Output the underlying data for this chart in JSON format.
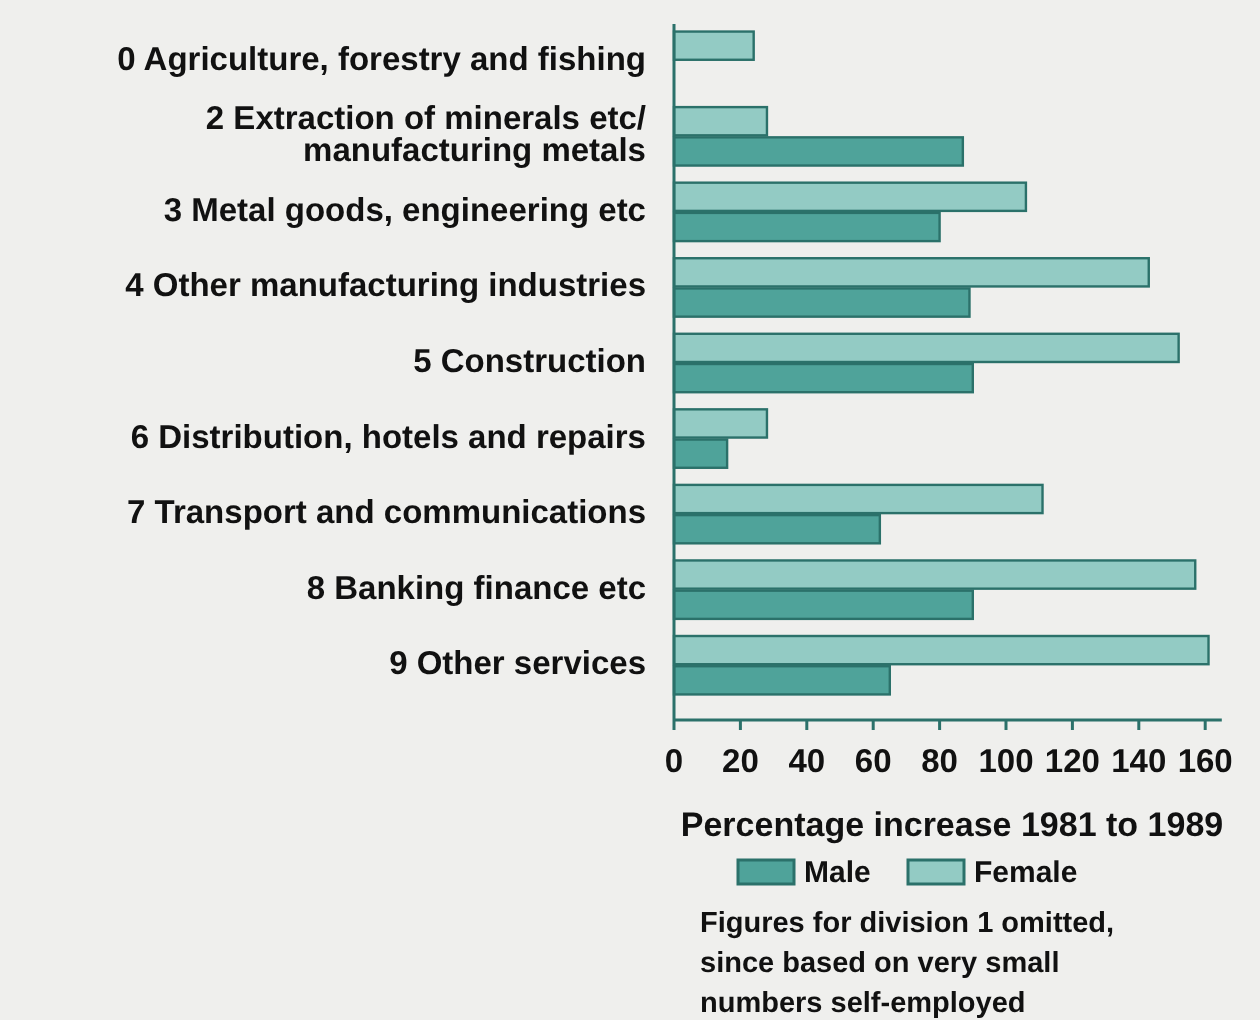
{
  "chart_data": {
    "type": "bar",
    "orientation": "horizontal",
    "categories": [
      "0 Agriculture, forestry and fishing",
      "2 Extraction of minerals etc/\nmanufacturing metals",
      "3 Metal goods, engineering etc",
      "4 Other manufacturing industries",
      "5 Construction",
      "6 Distribution, hotels and repairs",
      "7 Transport and communications",
      "8 Banking finance etc",
      "9 Other services"
    ],
    "series": [
      {
        "name": "Male",
        "color": "#4fa39a",
        "values": [
          null,
          87,
          80,
          89,
          90,
          16,
          62,
          90,
          65
        ]
      },
      {
        "name": "Female",
        "color": "#93cbc4",
        "values": [
          24,
          28,
          106,
          143,
          152,
          28,
          111,
          157,
          161
        ]
      }
    ],
    "xlim": [
      0,
      165
    ],
    "xticks": [
      0,
      20,
      40,
      60,
      80,
      100,
      120,
      140,
      160
    ],
    "xlabel": "Percentage increase 1981 to 1989",
    "legend": "bottom",
    "annotations": [
      "Figures for division 1 omitted,\nsince based on very small\nnumbers self-employed"
    ]
  }
}
